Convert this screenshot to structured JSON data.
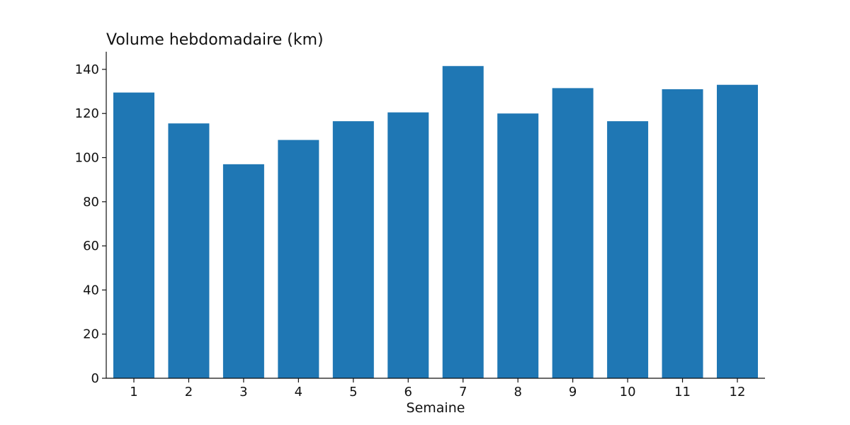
{
  "chart_data": {
    "type": "bar",
    "title": "Volume hebdomadaire (km)",
    "xlabel": "Semaine",
    "ylabel": "",
    "categories": [
      "1",
      "2",
      "3",
      "4",
      "5",
      "6",
      "7",
      "8",
      "9",
      "10",
      "11",
      "12"
    ],
    "values": [
      129.5,
      115.5,
      97,
      108,
      116.5,
      120.5,
      141.5,
      120,
      131.5,
      116.5,
      131,
      133
    ],
    "ylim": [
      0,
      148
    ],
    "yticks": [
      0,
      20,
      40,
      60,
      80,
      100,
      120,
      140
    ],
    "grid": false,
    "bar_color": "#1f77b4",
    "axis_color": "#111111"
  }
}
